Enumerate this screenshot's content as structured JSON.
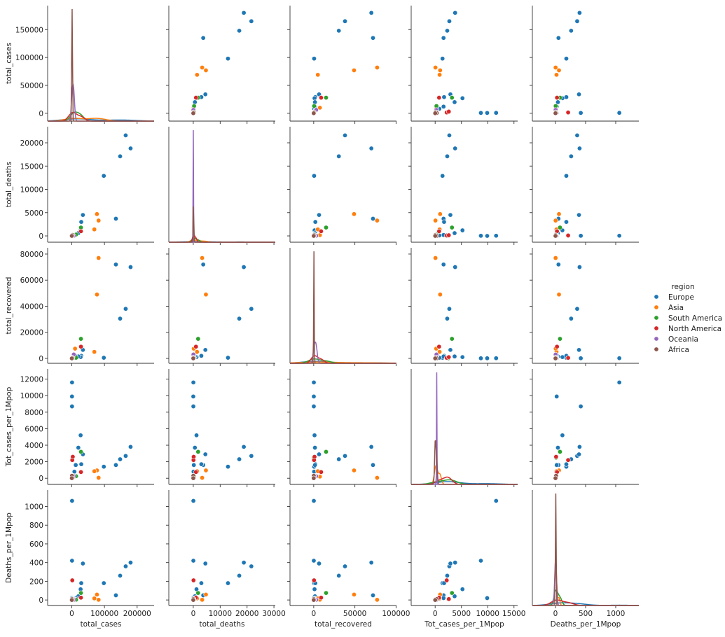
{
  "chart_data": {
    "type": "pairplot",
    "legend_title": "region",
    "variables": [
      {
        "name": "total_cases",
        "xlim": [
          -74000,
          252000
        ],
        "xticks": [
          0,
          100000,
          200000
        ],
        "ylim": [
          -14000,
          193000
        ],
        "yticks": [
          0,
          50000,
          100000,
          150000
        ]
      },
      {
        "name": "total_deaths",
        "xlim": [
          -9100,
          30500
        ],
        "xticks": [
          0,
          10000,
          20000,
          30000
        ],
        "ylim": [
          -1350,
          23460
        ],
        "yticks": [
          0,
          5000,
          10000,
          15000,
          20000
        ]
      },
      {
        "name": "total_recovered",
        "xlim": [
          -28800,
          100500
        ],
        "xticks": [
          0,
          50000,
          100000
        ],
        "ylim": [
          -3760,
          84800
        ],
        "yticks": [
          0,
          20000,
          40000,
          60000,
          80000
        ]
      },
      {
        "name": "Tot_cases_per_1Mpop",
        "xlim": [
          -4560,
          15700
        ],
        "xticks": [
          0,
          5000,
          10000,
          15000
        ],
        "ylim": [
          -745,
          13240
        ],
        "yticks": [
          0,
          2000,
          4000,
          6000,
          8000,
          10000,
          12000
        ]
      },
      {
        "name": "Deaths_per_1Mpop",
        "xlim": [
          -384,
          1384
        ],
        "xticks": [
          0,
          500,
          1000
        ],
        "ylim": [
          -59,
          1176
        ],
        "yticks": [
          0,
          200,
          400,
          600,
          800,
          1000
        ]
      }
    ],
    "series": [
      {
        "name": "Europe",
        "color": "#1f77b4",
        "data": [
          [
            180000,
            165000,
            148000,
            135000,
            98000,
            34000,
            29000,
            27000,
            20000,
            12000,
            8000,
            800,
            700,
            600
          ],
          [
            18800,
            21600,
            17100,
            3700,
            12900,
            4500,
            3000,
            1200,
            600,
            200,
            100,
            40,
            30,
            5
          ],
          [
            70000,
            38000,
            30500,
            72000,
            500,
            6500,
            2000,
            1000,
            1500,
            1500,
            500,
            150,
            100,
            100
          ],
          [
            3800,
            2700,
            2300,
            1600,
            1400,
            2900,
            1700,
            5200,
            3700,
            1600,
            800,
            11600,
            8700,
            9900
          ],
          [
            400,
            360,
            260,
            50,
            180,
            390,
            180,
            115,
            40,
            20,
            10,
            1060,
            420,
            20
          ]
        ]
      },
      {
        "name": "Asia",
        "color": "#ff7f0e",
        "data": [
          [
            82000,
            77000,
            69000,
            10000,
            5000,
            2000
          ],
          [
            3300,
            4700,
            1400,
            170,
            50,
            10
          ],
          [
            77000,
            49000,
            5000,
            7500,
            2000,
            500
          ],
          [
            57,
            950,
            850,
            200,
            300,
            50
          ],
          [
            2,
            58,
            17,
            3,
            5,
            1
          ]
        ]
      },
      {
        "name": "South America",
        "color": "#2ca02c",
        "data": [
          [
            28000,
            13000,
            2000
          ],
          [
            1800,
            300,
            50
          ],
          [
            15000,
            500,
            100
          ],
          [
            3200,
            250,
            2500
          ],
          [
            75,
            3,
            10
          ]
        ]
      },
      {
        "name": "North America",
        "color": "#d62728",
        "data": [
          [
            28000,
            1500,
            3000
          ],
          [
            1000,
            90,
            150
          ],
          [
            9000,
            400,
            1000
          ],
          [
            750,
            2200,
            2600
          ],
          [
            25,
            210,
            10
          ]
        ]
      },
      {
        "name": "Oceania",
        "color": "#9467bd",
        "data": [
          [
            6000,
            1300
          ],
          [
            50,
            10
          ],
          [
            3000,
            700
          ],
          [
            250,
            280
          ],
          [
            2,
            2
          ]
        ]
      },
      {
        "name": "Africa",
        "color": "#8c564b",
        "data": [
          [
            2000,
            500,
            100
          ],
          [
            200,
            20,
            5
          ],
          [
            500,
            100,
            10
          ],
          [
            50,
            300,
            10
          ],
          [
            5,
            10,
            0
          ]
        ]
      }
    ]
  }
}
